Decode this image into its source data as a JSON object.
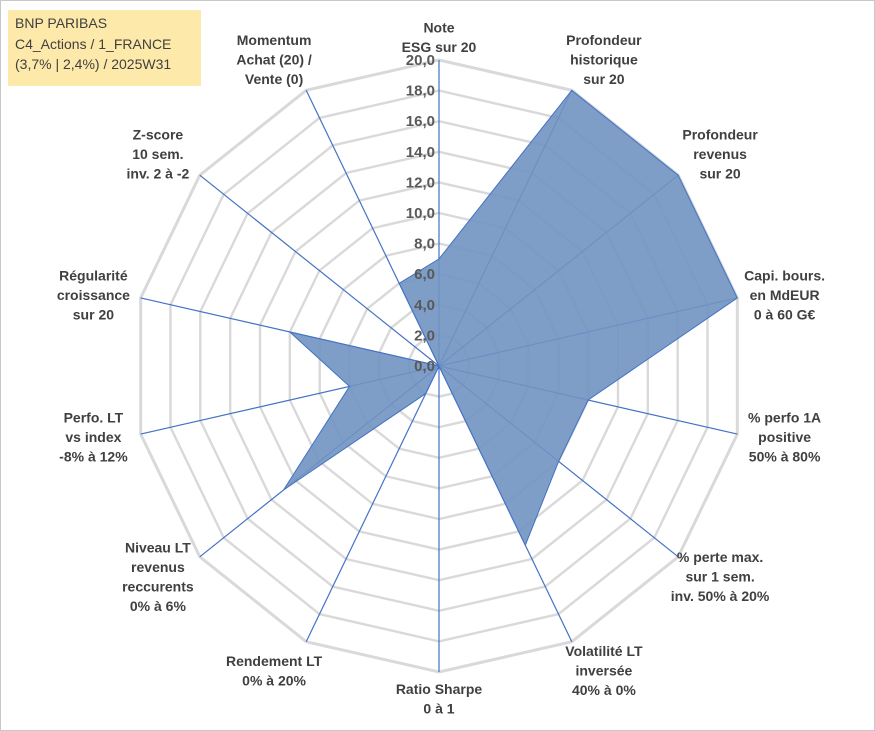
{
  "title_box": {
    "line1": "BNP PARIBAS",
    "line2": "C4_Actions / 1_FRANCE",
    "line3": "(3,7% | 2,4%) / 2025W31"
  },
  "colors": {
    "fill": "#7093c2",
    "outline": "#4472c4",
    "grid": "#d9d9d9",
    "spoke": "#4472c4",
    "title_bg": "#fde9a9"
  },
  "chart_data": {
    "type": "radar",
    "title": "",
    "rmax": 20,
    "ticks": [
      "0,0",
      "2,0",
      "4,0",
      "6,0",
      "8,0",
      "10,0",
      "12,0",
      "14,0",
      "16,0",
      "18,0",
      "20,0"
    ],
    "axes": [
      {
        "label": [
          "Note",
          "ESG sur 20"
        ],
        "value": 7.0
      },
      {
        "label": [
          "Profondeur",
          "historique",
          "sur 20"
        ],
        "value": 20.0
      },
      {
        "label": [
          "Profondeur",
          "revenus",
          "sur 20"
        ],
        "value": 20.0
      },
      {
        "label": [
          "Capi. bours.",
          "en MdEUR",
          "0 à 60 G€"
        ],
        "value": 20.0
      },
      {
        "label": [
          "% perfo 1A",
          "positive",
          "50% à 80%"
        ],
        "value": 10.0
      },
      {
        "label": [
          "% perte max.",
          "sur 1 sem.",
          "inv. 50% à 20%"
        ],
        "value": 10.0
      },
      {
        "label": [
          "Volatilité LT",
          "inversée",
          "40% à 0%"
        ],
        "value": 13.0
      },
      {
        "label": [
          "Ratio Sharpe",
          "0 à 1"
        ],
        "value": 0.0
      },
      {
        "label": [
          "Rendement LT",
          "0% à 20%"
        ],
        "value": 2.0
      },
      {
        "label": [
          "Niveau LT",
          "revenus",
          "reccurents",
          "0% à 6%"
        ],
        "value": 13.0
      },
      {
        "label": [
          "Perfo. LT",
          "vs index",
          "-8% à 12%"
        ],
        "value": 6.0
      },
      {
        "label": [
          "Régularité",
          "croissance",
          "sur 20"
        ],
        "value": 10.0
      },
      {
        "label": [
          "Z-score",
          "10 sem.",
          "inv. 2 à -2"
        ],
        "value": 0.0
      },
      {
        "label": [
          "Momentum",
          "Achat (20) /",
          "Vente (0)"
        ],
        "value": 6.0
      }
    ]
  }
}
